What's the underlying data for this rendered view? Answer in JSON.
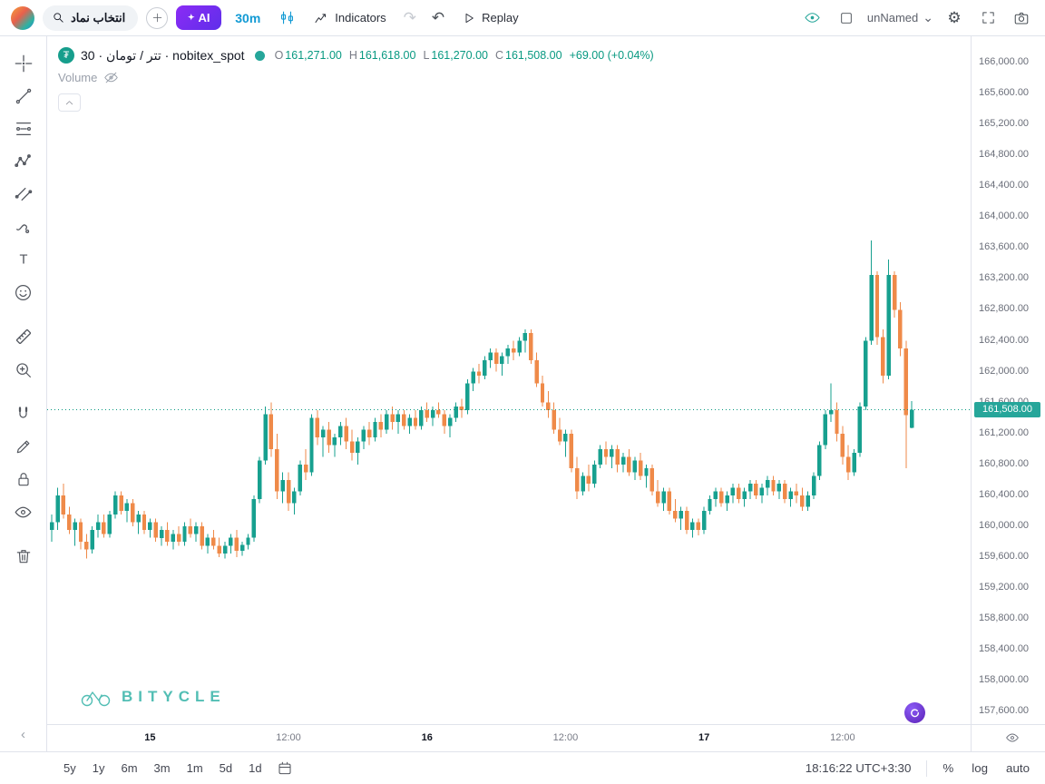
{
  "colors": {
    "accent_teal": "#089981",
    "candle_up": "#17a08f",
    "candle_down": "#ef8a49",
    "price_label_bg": "#26a69a",
    "timeframe_blue": "#129ad4",
    "ai_purple": "#7c3aed",
    "watermark": "#35b3a8",
    "border": "#e0e3eb",
    "text_dark": "#131722",
    "text_gray": "#787b86"
  },
  "header": {
    "search_label": "انتخاب نماد",
    "ai_label": "AI",
    "ai_sparkle": "✦",
    "timeframe": "30m",
    "indicators_label": "Indicators",
    "replay_label": "Replay",
    "layout_name": "unNamed",
    "redo_glyph": "↷",
    "undo_glyph": "↶",
    "gear_glyph": "⚙",
    "chevron_glyph": "⌄"
  },
  "left_toolbar": {
    "tools": [
      "crosshair",
      "trend-line",
      "fib-retracement",
      "xabcd-pattern",
      "parallel-channel",
      "brush",
      "text",
      "emoji",
      "ruler",
      "zoom-in",
      "magnet",
      "draw",
      "lock-all",
      "hide-all-drawings",
      "remove-all-drawings"
    ],
    "overflow_glyph": "‹"
  },
  "legend": {
    "symbol_title": "تتر / تومان · 30 · nobitex_spot",
    "symbol_glyph": "₮",
    "ohlc": {
      "o_label": "O",
      "o": "161,271.00",
      "h_label": "H",
      "h": "161,618.00",
      "l_label": "L",
      "l": "161,270.00",
      "c_label": "C",
      "c": "161,508.00",
      "change": "+69.00 (+0.04%)"
    },
    "volume_label": "Volume",
    "collapse_glyph": "︿"
  },
  "watermark_text": "BITYCLE",
  "bottom_bar": {
    "ranges": [
      "5y",
      "1y",
      "6m",
      "3m",
      "1m",
      "5d",
      "1d"
    ],
    "clock": "18:16:22 UTC+3:30",
    "percent_label": "%",
    "log_label": "log",
    "auto_label": "auto"
  },
  "chart_data": {
    "type": "candlestick",
    "title": "تتر / تومان · 30 · nobitex_spot",
    "timeframe_minutes": 30,
    "ylabel": "",
    "xlabel": "",
    "grid": false,
    "ylim": [
      157440,
      166340
    ],
    "current_price": 161508,
    "current_price_label": "161,508.00",
    "price_ticks": [
      166000,
      165600,
      165200,
      164800,
      164400,
      164000,
      163600,
      163200,
      162800,
      162400,
      162000,
      161600,
      161200,
      160800,
      160400,
      160000,
      159600,
      159200,
      158800,
      158400,
      158000,
      157600
    ],
    "x_ticks": [
      {
        "index": 17,
        "label": "15",
        "major": true
      },
      {
        "index": 41,
        "label": "12:00",
        "major": false
      },
      {
        "index": 65,
        "label": "16",
        "major": true
      },
      {
        "index": 89,
        "label": "12:00",
        "major": false
      },
      {
        "index": 113,
        "label": "17",
        "major": true
      },
      {
        "index": 137,
        "label": "12:00",
        "major": false
      }
    ],
    "candles": [
      [
        159950,
        160150,
        159800,
        160050
      ],
      [
        160050,
        160500,
        159950,
        160400
      ],
      [
        160400,
        160550,
        160100,
        160150
      ],
      [
        160150,
        160250,
        159900,
        159950
      ],
      [
        159950,
        160100,
        159750,
        160050
      ],
      [
        160050,
        160100,
        159700,
        159800
      ],
      [
        159800,
        159900,
        159580,
        159700
      ],
      [
        159700,
        160000,
        159650,
        159950
      ],
      [
        159950,
        160150,
        159850,
        160050
      ],
      [
        160050,
        160150,
        159850,
        159900
      ],
      [
        159900,
        160200,
        159850,
        160150
      ],
      [
        160150,
        160450,
        160100,
        160400
      ],
      [
        160400,
        160450,
        160150,
        160200
      ],
      [
        160200,
        160350,
        160050,
        160300
      ],
      [
        160300,
        160350,
        160000,
        160050
      ],
      [
        160050,
        160200,
        159900,
        160150
      ],
      [
        160150,
        160200,
        159900,
        159950
      ],
      [
        159950,
        160100,
        159850,
        160050
      ],
      [
        160050,
        160100,
        159800,
        159850
      ],
      [
        159850,
        160000,
        159750,
        159950
      ],
      [
        159950,
        160050,
        159750,
        159800
      ],
      [
        159800,
        159950,
        159700,
        159900
      ],
      [
        159900,
        160000,
        159750,
        159800
      ],
      [
        159800,
        160050,
        159750,
        160000
      ],
      [
        160000,
        160100,
        159850,
        159900
      ],
      [
        159900,
        160050,
        159800,
        160000
      ],
      [
        160000,
        160050,
        159700,
        159750
      ],
      [
        159750,
        159900,
        159650,
        159850
      ],
      [
        159850,
        159950,
        159700,
        159750
      ],
      [
        159750,
        159850,
        159600,
        159650
      ],
      [
        159650,
        159800,
        159580,
        159750
      ],
      [
        159750,
        159900,
        159650,
        159850
      ],
      [
        159850,
        159950,
        159600,
        159680
      ],
      [
        159680,
        159800,
        159620,
        159760
      ],
      [
        159760,
        159900,
        159700,
        159850
      ],
      [
        159850,
        160400,
        159800,
        160350
      ],
      [
        160350,
        160900,
        160300,
        160850
      ],
      [
        160850,
        161550,
        160800,
        161450
      ],
      [
        161450,
        161600,
        160900,
        161000
      ],
      [
        161000,
        161200,
        160350,
        160450
      ],
      [
        160450,
        160700,
        160300,
        160600
      ],
      [
        160600,
        160700,
        160200,
        160300
      ],
      [
        160300,
        160500,
        160150,
        160450
      ],
      [
        160450,
        160850,
        160400,
        160800
      ],
      [
        160800,
        161000,
        160600,
        160700
      ],
      [
        160700,
        161450,
        160650,
        161400
      ],
      [
        161400,
        161500,
        161050,
        161150
      ],
      [
        161150,
        161300,
        160900,
        161250
      ],
      [
        161250,
        161350,
        160950,
        161050
      ],
      [
        161050,
        161200,
        160900,
        161150
      ],
      [
        161150,
        161350,
        161050,
        161300
      ],
      [
        161300,
        161400,
        161000,
        161100
      ],
      [
        161100,
        161250,
        160850,
        160950
      ],
      [
        160950,
        161150,
        160800,
        161100
      ],
      [
        161100,
        161300,
        161000,
        161250
      ],
      [
        161250,
        161350,
        161050,
        161150
      ],
      [
        161150,
        161400,
        161100,
        161350
      ],
      [
        161350,
        161450,
        161150,
        161250
      ],
      [
        161250,
        161500,
        161200,
        161450
      ],
      [
        161450,
        161550,
        161250,
        161350
      ],
      [
        161350,
        161500,
        161200,
        161450
      ],
      [
        161450,
        161500,
        161250,
        161300
      ],
      [
        161300,
        161450,
        161200,
        161400
      ],
      [
        161400,
        161500,
        161250,
        161300
      ],
      [
        161300,
        161550,
        161250,
        161500
      ],
      [
        161500,
        161600,
        161350,
        161400
      ],
      [
        161400,
        161550,
        161300,
        161500
      ],
      [
        161500,
        161600,
        161400,
        161450
      ],
      [
        161450,
        161500,
        161200,
        161300
      ],
      [
        161300,
        161450,
        161150,
        161400
      ],
      [
        161400,
        161600,
        161350,
        161550
      ],
      [
        161550,
        161650,
        161400,
        161500
      ],
      [
        161500,
        161900,
        161450,
        161850
      ],
      [
        161850,
        162050,
        161750,
        162000
      ],
      [
        162000,
        162100,
        161850,
        161950
      ],
      [
        161950,
        162200,
        161900,
        162150
      ],
      [
        162150,
        162300,
        162050,
        162250
      ],
      [
        162250,
        162300,
        162000,
        162100
      ],
      [
        162100,
        162250,
        161950,
        162200
      ],
      [
        162200,
        162350,
        162100,
        162300
      ],
      [
        162300,
        162400,
        162150,
        162250
      ],
      [
        162250,
        162450,
        162200,
        162400
      ],
      [
        162400,
        162550,
        162250,
        162500
      ],
      [
        162500,
        162550,
        162100,
        162150
      ],
      [
        162150,
        162250,
        161800,
        161850
      ],
      [
        161850,
        161950,
        161550,
        161600
      ],
      [
        161600,
        161750,
        161400,
        161500
      ],
      [
        161500,
        161600,
        161200,
        161250
      ],
      [
        161250,
        161400,
        161050,
        161100
      ],
      [
        161100,
        161250,
        160900,
        161200
      ],
      [
        161200,
        161250,
        160700,
        160750
      ],
      [
        160750,
        160900,
        160350,
        160450
      ],
      [
        160450,
        160700,
        160400,
        160650
      ],
      [
        160650,
        160800,
        160450,
        160550
      ],
      [
        160550,
        160850,
        160500,
        160800
      ],
      [
        160800,
        161050,
        160750,
        161000
      ],
      [
        161000,
        161100,
        160800,
        160900
      ],
      [
        160900,
        161050,
        160750,
        161000
      ],
      [
        161000,
        161050,
        160700,
        160800
      ],
      [
        160800,
        160950,
        160700,
        160900
      ],
      [
        160900,
        161000,
        160650,
        160700
      ],
      [
        160700,
        160900,
        160600,
        160850
      ],
      [
        160850,
        160950,
        160600,
        160650
      ],
      [
        160650,
        160800,
        160500,
        160750
      ],
      [
        160750,
        160800,
        160400,
        160450
      ],
      [
        160450,
        160600,
        160250,
        160300
      ],
      [
        160300,
        160500,
        160200,
        160450
      ],
      [
        160450,
        160500,
        160150,
        160200
      ],
      [
        160200,
        160350,
        160050,
        160100
      ],
      [
        160100,
        160250,
        159950,
        160200
      ],
      [
        160200,
        160250,
        159900,
        159950
      ],
      [
        159950,
        160100,
        159850,
        160050
      ],
      [
        160050,
        160100,
        159880,
        159950
      ],
      [
        159950,
        160250,
        159900,
        160200
      ],
      [
        160200,
        160400,
        160150,
        160350
      ],
      [
        160350,
        160500,
        160250,
        160450
      ],
      [
        160450,
        160500,
        160250,
        160300
      ],
      [
        160300,
        160450,
        160200,
        160400
      ],
      [
        160400,
        160550,
        160300,
        160500
      ],
      [
        160500,
        160550,
        160300,
        160350
      ],
      [
        160350,
        160500,
        160250,
        160450
      ],
      [
        160450,
        160600,
        160350,
        160550
      ],
      [
        160550,
        160600,
        160350,
        160400
      ],
      [
        160400,
        160550,
        160300,
        160500
      ],
      [
        160500,
        160650,
        160400,
        160600
      ],
      [
        160600,
        160650,
        160400,
        160450
      ],
      [
        160450,
        160600,
        160350,
        160550
      ],
      [
        160550,
        160600,
        160300,
        160350
      ],
      [
        160350,
        160500,
        160250,
        160450
      ],
      [
        160450,
        160550,
        160300,
        160400
      ],
      [
        160400,
        160500,
        160200,
        160250
      ],
      [
        160250,
        160450,
        160200,
        160400
      ],
      [
        160400,
        160700,
        160350,
        160650
      ],
      [
        160650,
        161100,
        160600,
        161050
      ],
      [
        161050,
        161500,
        161000,
        161450
      ],
      [
        161450,
        161850,
        161350,
        161500
      ],
      [
        161500,
        161600,
        161100,
        161200
      ],
      [
        161200,
        161300,
        160800,
        160900
      ],
      [
        160900,
        161050,
        160600,
        160700
      ],
      [
        160700,
        161000,
        160650,
        160950
      ],
      [
        160950,
        161600,
        160900,
        161550
      ],
      [
        161550,
        162450,
        161500,
        162400
      ],
      [
        162400,
        163700,
        162350,
        163250
      ],
      [
        163250,
        163300,
        162350,
        162450
      ],
      [
        162450,
        162550,
        161850,
        161950
      ],
      [
        161950,
        163450,
        161900,
        163250
      ],
      [
        163250,
        163300,
        162700,
        162800
      ],
      [
        162800,
        162900,
        162200,
        162300
      ],
      [
        162300,
        162400,
        160750,
        161439
      ],
      [
        161271,
        161618,
        161270,
        161508
      ]
    ]
  }
}
